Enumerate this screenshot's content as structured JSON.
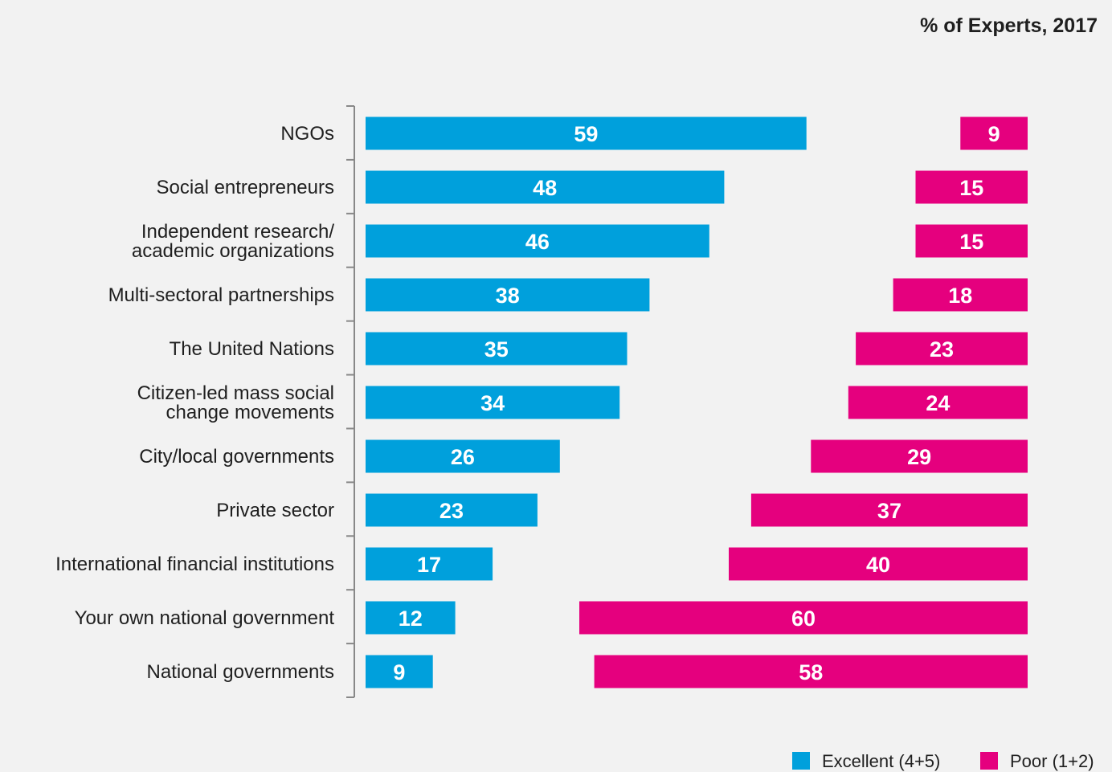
{
  "chart_data": {
    "type": "bar",
    "orientation": "horizontal",
    "subtitle": "% of Experts, 2017",
    "categories": [
      [
        "NGOs"
      ],
      [
        "Social entrepreneurs"
      ],
      [
        "Independent research/",
        "academic organizations"
      ],
      [
        "Multi-sectoral partnerships"
      ],
      [
        "The United Nations"
      ],
      [
        "Citizen-led mass social",
        "change movements"
      ],
      [
        "City/local governments"
      ],
      [
        "Private  sector"
      ],
      [
        "International financial institutions"
      ],
      [
        "Your own national government"
      ],
      [
        "National governments"
      ]
    ],
    "series": [
      {
        "name": "Excellent (4+5)",
        "color": "#00a0dc",
        "values": [
          59,
          48,
          46,
          38,
          35,
          34,
          26,
          23,
          17,
          12,
          9
        ]
      },
      {
        "name": "Poor (1+2)",
        "color": "#e5007e",
        "values": [
          9,
          15,
          15,
          18,
          23,
          24,
          29,
          37,
          40,
          60,
          58
        ]
      }
    ],
    "legend_position": "bottom-right",
    "grid": false
  }
}
